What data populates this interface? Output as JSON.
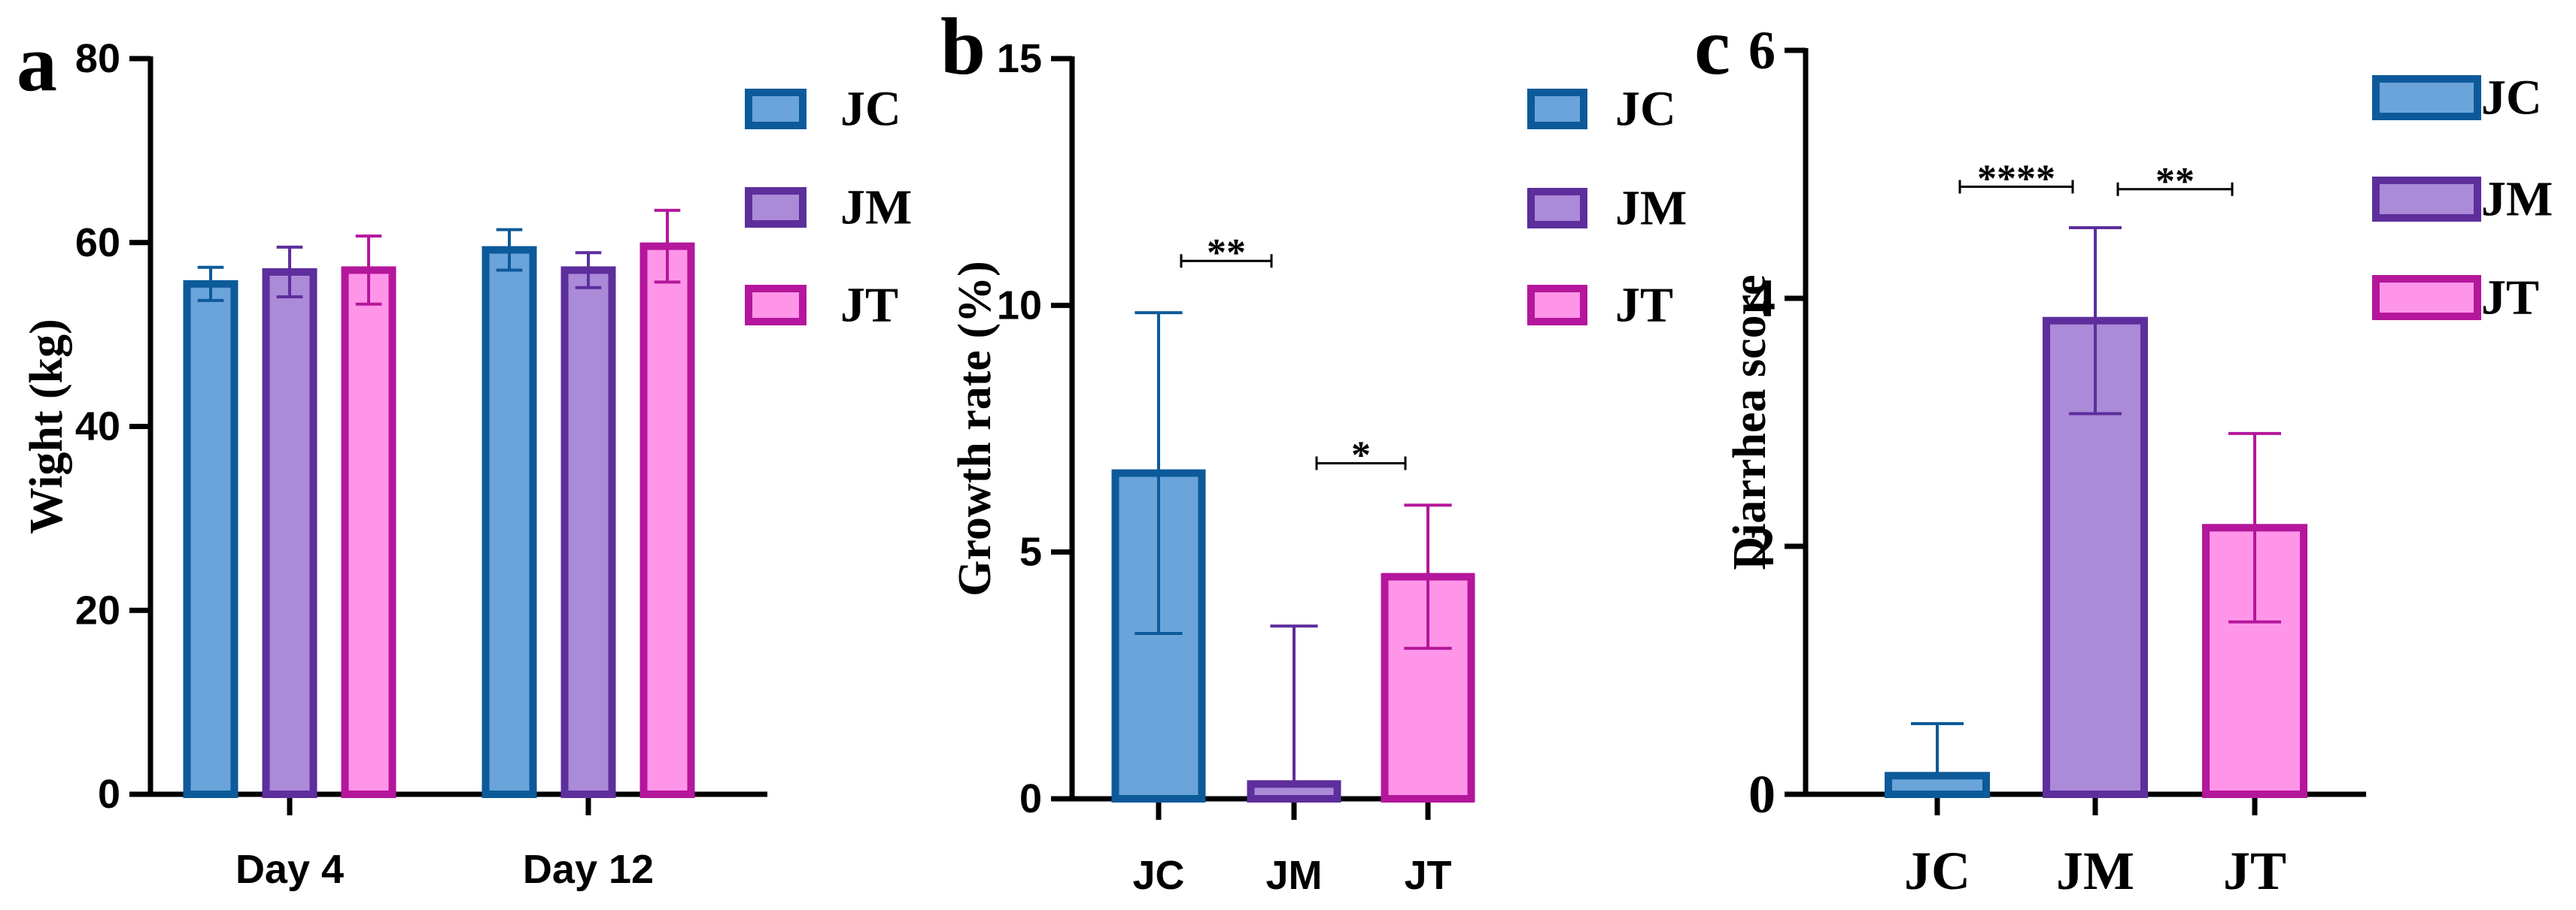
{
  "series_colors": {
    "JC": {
      "fill": "#6aa4da",
      "stroke": "#0d5a9a"
    },
    "JM": {
      "fill": "#ab8ad8",
      "stroke": "#5d2e9c"
    },
    "JT": {
      "fill": "#ff95e8",
      "stroke": "#b4169c"
    }
  },
  "chart_data": [
    {
      "panel": "a",
      "type": "bar",
      "ylabel": "Wight (kg)",
      "ylim": [
        0,
        80
      ],
      "yticks": [
        "0",
        "20",
        "40",
        "60",
        "80"
      ],
      "categories": [
        "Day 4",
        "Day 12"
      ],
      "series": [
        {
          "name": "JC",
          "values": [
            55.5,
            59.2
          ],
          "errors": [
            1.8,
            2.2
          ]
        },
        {
          "name": "JM",
          "values": [
            56.8,
            57.0
          ],
          "errors": [
            2.7,
            1.9
          ]
        },
        {
          "name": "JT",
          "values": [
            57.0,
            59.6
          ],
          "errors": [
            3.7,
            3.9
          ]
        }
      ],
      "legend": [
        "JC",
        "JM",
        "JT"
      ],
      "legend_placement": "right"
    },
    {
      "panel": "b",
      "type": "bar",
      "ylabel": "Growth rate (%)",
      "ylim": [
        0,
        15
      ],
      "yticks": [
        "0",
        "5",
        "10",
        "15"
      ],
      "categories": [
        "JC",
        "JM",
        "JT"
      ],
      "values": [
        6.6,
        0.3,
        4.5
      ],
      "errors": [
        3.25,
        3.2,
        1.45
      ],
      "error_style": [
        "both",
        "up",
        "both"
      ],
      "significance": [
        {
          "from": 0,
          "to": 1,
          "label": "**",
          "y": 10.9
        },
        {
          "from": 1,
          "to": 2,
          "label": "*",
          "y": 6.8
        }
      ],
      "legend": [
        "JC",
        "JM",
        "JT"
      ],
      "legend_placement": "right"
    },
    {
      "panel": "c",
      "type": "bar",
      "ylabel": "Diarrhea score",
      "ylim": [
        0,
        6
      ],
      "yticks": [
        "0",
        "2",
        "4",
        "6"
      ],
      "categories": [
        "JC",
        "JM",
        "JT"
      ],
      "values": [
        0.15,
        3.82,
        2.15
      ],
      "errors": [
        0.42,
        0.75,
        0.76
      ],
      "error_style": [
        "up",
        "both",
        "both"
      ],
      "significance": [
        {
          "from": 0,
          "to": 1,
          "label": "****",
          "y": 4.9
        },
        {
          "from": 1,
          "to": 2,
          "label": "**",
          "y": 4.88
        }
      ],
      "legend": [
        "JC",
        "JM",
        "JT"
      ],
      "legend_placement": "right"
    }
  ]
}
